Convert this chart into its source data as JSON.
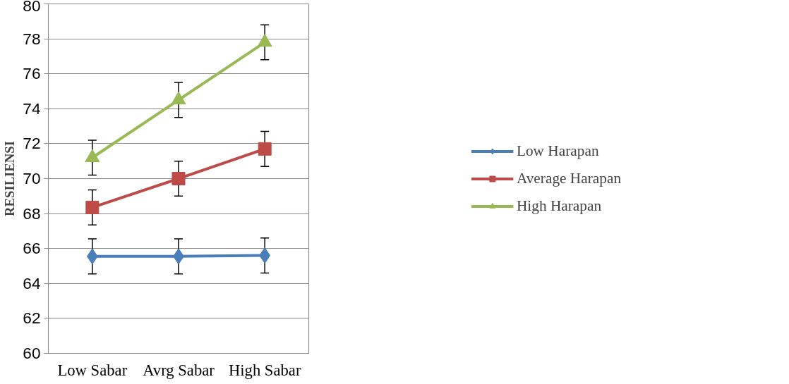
{
  "chart_data": {
    "type": "line",
    "ylabel": "RESILIENSI",
    "categories": [
      "Low Sabar",
      "Avrg Sabar",
      "High Sabar"
    ],
    "series": [
      {
        "name": "Low Harapan",
        "color": "#4a7ebb",
        "marker": "diamond",
        "values": [
          65.55,
          65.55,
          65.6
        ],
        "errors": [
          1,
          1,
          1
        ]
      },
      {
        "name": "Average Harapan",
        "color": "#be4b48",
        "marker": "square",
        "values": [
          68.35,
          70.0,
          71.7
        ],
        "errors": [
          1,
          1,
          1
        ]
      },
      {
        "name": "High Harapan",
        "color": "#98b954",
        "marker": "triangle",
        "values": [
          71.2,
          74.5,
          77.8
        ],
        "errors": [
          1,
          1,
          1
        ]
      }
    ],
    "ylim": [
      60,
      80
    ],
    "yticks": [
      60,
      62,
      64,
      66,
      68,
      70,
      72,
      74,
      76,
      78,
      80
    ],
    "grid": "y",
    "legend": "right"
  }
}
